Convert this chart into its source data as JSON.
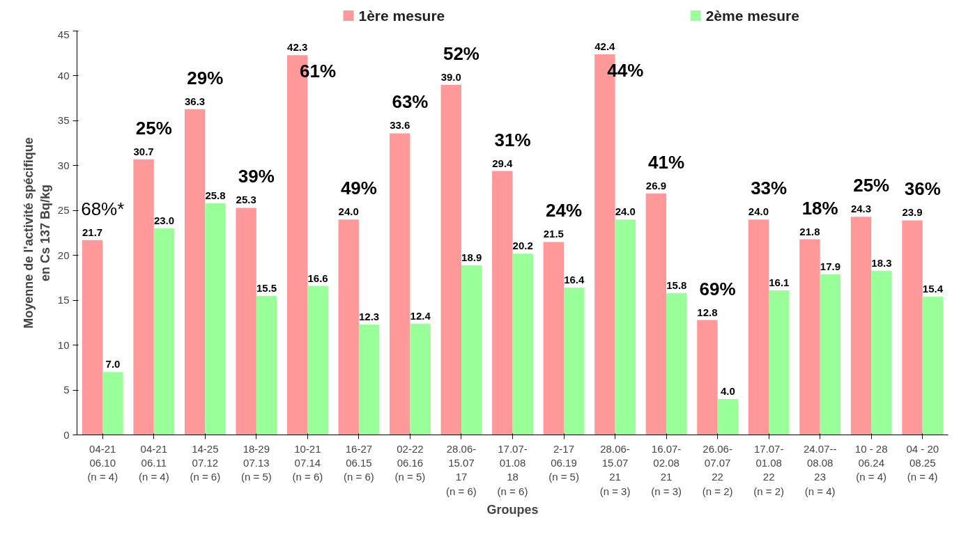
{
  "chart_data": {
    "type": "bar",
    "xlabel": "Groupes",
    "ylabel": "Moyenne de l'activité spécifique\nen Cs 137 Bq/kg",
    "categories": [
      "04-21\n06.10\n(n = 4)",
      "04-21\n06.11\n(n = 4)",
      "14-25\n07.12\n(n = 6)",
      "18-29\n07.13\n(n = 5)",
      "10-21\n07.14\n(n = 6)",
      "16-27\n06.15\n(n = 6)",
      "02-22\n06.16\n(n = 5)",
      "28.06-\n15.07\n17\n(n = 6)",
      "17.07-\n01.08\n18\n(n = 6)",
      "2-17\n06.19\n(n = 5)",
      "28.06-\n15.07\n21\n(n = 3)",
      "16.07-\n02.08\n21\n(n = 3)",
      "26.06-\n07.07\n22\n(n = 2)",
      "17.07-\n01.08\n22\n(n = 2)",
      "24.07--\n08.08\n23\n(n = 4)",
      "10 - 28\n06.24\n(n = 4)",
      "04 - 20\n08.25\n(n = 4)"
    ],
    "series": [
      {
        "name": "1ère mesure",
        "color": "#ff9999",
        "values": [
          21.7,
          30.7,
          36.3,
          25.3,
          42.3,
          24.0,
          33.6,
          39.0,
          29.4,
          21.5,
          42.4,
          26.9,
          12.8,
          24.0,
          21.8,
          24.3,
          23.9
        ],
        "value_labels": [
          "21.7",
          "30.7",
          "36.3",
          "25.3",
          "42.3",
          "24.0",
          "33.6",
          "39.0",
          "29.4",
          "21.5",
          "42.4",
          "26.9",
          "12.8",
          "24.0",
          "21.8",
          "24.3",
          "23.9"
        ]
      },
      {
        "name": "2ème mesure",
        "color": "#99ff99",
        "values": [
          7.0,
          23.0,
          25.8,
          15.5,
          16.6,
          12.3,
          12.4,
          18.9,
          20.2,
          16.4,
          24.0,
          15.8,
          4.0,
          16.1,
          17.9,
          18.3,
          15.4
        ],
        "value_labels": [
          "7.0",
          "23.0",
          "25.8",
          "15.5",
          "16.6",
          "12.3",
          "12.4",
          "18.9",
          "20.2",
          "16.4",
          "24.0",
          "15.8",
          "4.0",
          "16.1",
          "17.9",
          "18.3",
          "15.4"
        ]
      }
    ],
    "ylim": [
      0,
      45
    ],
    "yticks": [
      0,
      5,
      10,
      15,
      20,
      25,
      30,
      35,
      40,
      45
    ],
    "grid": false,
    "legend": "top",
    "annotations": [
      "68%*",
      "25%",
      "29%",
      "39%",
      "61%",
      "49%",
      "63%",
      "52%",
      "31%",
      "24%",
      "44%",
      "41%",
      "69%",
      "33%",
      "18%",
      "25%",
      "36%"
    ]
  }
}
